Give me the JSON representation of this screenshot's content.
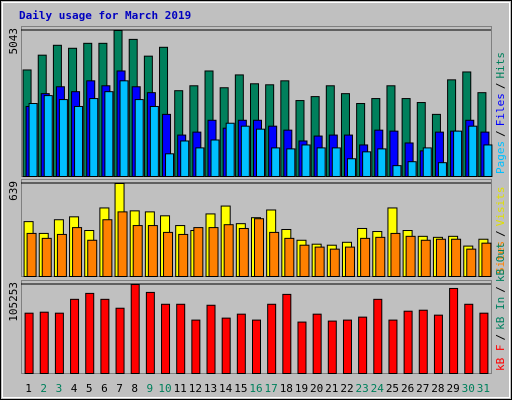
{
  "chart_data": [
    {
      "type": "bar",
      "title": "Daily usage for March 2019",
      "series": [
        {
          "name": "Hits",
          "color": "#00805c",
          "values": [
            3680,
            4191,
            4532,
            4429,
            4600,
            4600,
            5043,
            4736,
            4157,
            4463,
            2964,
            3134,
            3645,
            3066,
            3509,
            3203,
            3168,
            3305,
            2623,
            2760,
            3134,
            2862,
            2521,
            2692,
            3134,
            2692,
            2555,
            2146,
            3339,
            3611,
            2896
          ]
        },
        {
          "name": "Files",
          "color": "#0000ff",
          "values": [
            2419,
            2862,
            3100,
            2930,
            3305,
            3134,
            3645,
            3100,
            2896,
            2146,
            1431,
            1533,
            1942,
            1669,
            1942,
            1942,
            1738,
            1601,
            1227,
            1397,
            1431,
            1431,
            1090,
            1601,
            1567,
            1158,
            886,
            1533,
            1567,
            1942,
            1533
          ]
        },
        {
          "name": "Pages",
          "color": "#00c0ff",
          "values": [
            2521,
            2794,
            2657,
            2419,
            2692,
            2930,
            3305,
            2657,
            2419,
            784,
            1227,
            988,
            1261,
            1840,
            1738,
            1635,
            988,
            954,
            1090,
            988,
            988,
            613,
            852,
            954,
            375,
            511,
            988,
            477,
            1567,
            1738,
            1090
          ]
        }
      ],
      "legend_separator": "/",
      "ylim": [
        0,
        5043
      ],
      "yticks": [
        5043
      ]
    },
    {
      "type": "bar",
      "series": [
        {
          "name": "Visits",
          "color": "#ffff00",
          "values": [
            377,
            296,
            390,
            410,
            316,
            471,
            639,
            451,
            444,
            417,
            350,
            316,
            430,
            484,
            363,
            404,
            457,
            323,
            249,
            222,
            215,
            235,
            330,
            309,
            471,
            316,
            276,
            269,
            276,
            209,
            256
          ]
        },
        {
          "name": "Sites",
          "color": "#ff8000",
          "values": [
            296,
            262,
            289,
            336,
            249,
            390,
            444,
            350,
            350,
            303,
            289,
            336,
            336,
            356,
            330,
            397,
            303,
            262,
            215,
            202,
            188,
            202,
            262,
            269,
            296,
            276,
            249,
            256,
            256,
            188,
            229
          ]
        }
      ],
      "legend_separator": "/",
      "ylim": [
        0,
        639
      ],
      "yticks": [
        639
      ]
    },
    {
      "type": "bar",
      "series": [
        {
          "name": "kB F",
          "color": "#ff0000",
          "values": [
            71340,
            72509,
            71340,
            87713,
            94730,
            87713,
            77187,
            105253,
            95899,
            81865,
            81865,
            63153,
            80696,
            65492,
            70170,
            63153,
            81865,
            93560,
            60814,
            70170,
            61984,
            63153,
            66662,
            87713,
            63153,
            73679,
            74848,
            69001,
            100577,
            81865,
            71340
          ]
        }
      ],
      "legend_extra": [
        {
          "name": "kB In",
          "color": "#008060"
        },
        {
          "name": "kB Out",
          "color": "#008060"
        }
      ],
      "legend_separator": "/",
      "ylim": [
        0,
        105253
      ],
      "yticks": [
        105253
      ],
      "categories": [
        "1",
        "2",
        "3",
        "4",
        "5",
        "6",
        "7",
        "8",
        "9",
        "10",
        "11",
        "12",
        "13",
        "14",
        "15",
        "16",
        "17",
        "18",
        "19",
        "20",
        "21",
        "22",
        "23",
        "24",
        "25",
        "26",
        "27",
        "28",
        "29",
        "30",
        "31"
      ],
      "category_colors": [
        "#000000",
        "#00805c",
        "#00805c",
        "#000000",
        "#000000",
        "#000000",
        "#000000",
        "#000000",
        "#00805c",
        "#00805c",
        "#000000",
        "#000000",
        "#000000",
        "#000000",
        "#000000",
        "#00805c",
        "#00805c",
        "#000000",
        "#000000",
        "#000000",
        "#000000",
        "#000000",
        "#00805c",
        "#00805c",
        "#000000",
        "#000000",
        "#000000",
        "#000000",
        "#000000",
        "#00805c",
        "#00805c"
      ]
    }
  ]
}
